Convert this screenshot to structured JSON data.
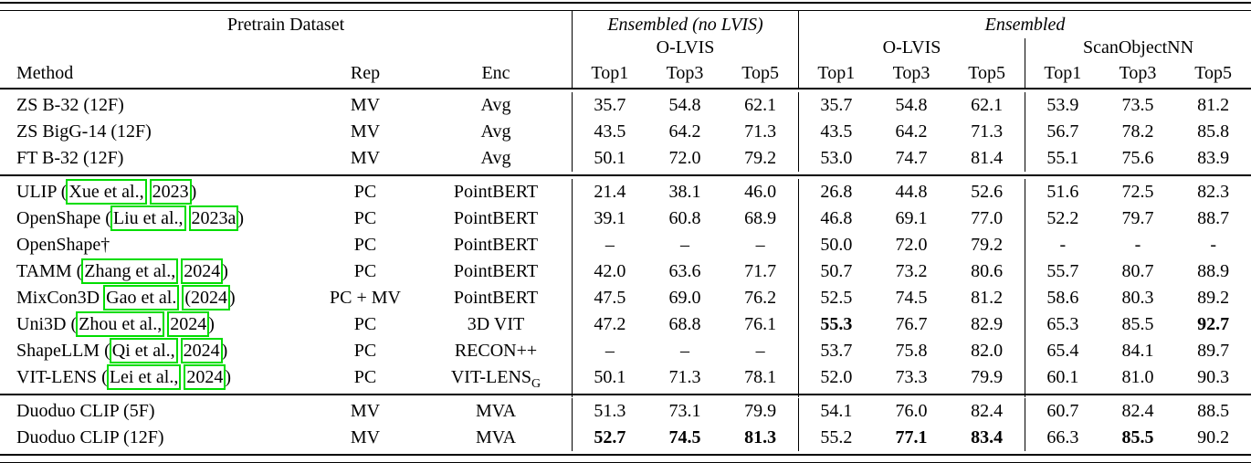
{
  "annotation": {
    "highlight_color": "#00dd00",
    "meaning": "citation-link-bounding-boxes"
  },
  "table": {
    "header": {
      "pretrain_dataset": "Pretrain Dataset",
      "group1": "Ensembled (no LVIS)",
      "group2": "Ensembled",
      "sub1": "O-LVIS",
      "sub2": "O-LVIS",
      "sub3": "ScanObjectNN",
      "method": "Method",
      "rep": "Rep",
      "enc": "Enc",
      "metric_labels": [
        "Top1",
        "Top3",
        "Top5",
        "Top1",
        "Top3",
        "Top5",
        "Top1",
        "Top3",
        "Top5"
      ]
    },
    "groups": [
      {
        "rows": [
          {
            "method": [
              {
                "t": "ZS B-32 (12F)"
              }
            ],
            "rep": "MV",
            "enc": [
              {
                "t": "Avg"
              }
            ],
            "values": [
              "35.7",
              "54.8",
              "62.1",
              "35.7",
              "54.8",
              "62.1",
              "53.9",
              "73.5",
              "81.2"
            ],
            "bold": []
          },
          {
            "method": [
              {
                "t": "ZS BigG-14 (12F)"
              }
            ],
            "rep": "MV",
            "enc": [
              {
                "t": "Avg"
              }
            ],
            "values": [
              "43.5",
              "64.2",
              "71.3",
              "43.5",
              "64.2",
              "71.3",
              "56.7",
              "78.2",
              "85.8"
            ],
            "bold": []
          },
          {
            "method": [
              {
                "t": "FT B-32 (12F)"
              }
            ],
            "rep": "MV",
            "enc": [
              {
                "t": "Avg"
              }
            ],
            "values": [
              "50.1",
              "72.0",
              "79.2",
              "53.0",
              "74.7",
              "81.4",
              "55.1",
              "75.6",
              "83.9"
            ],
            "bold": []
          }
        ]
      },
      {
        "rows": [
          {
            "method": [
              {
                "t": "ULIP ("
              },
              {
                "t": "Xue et al.,",
                "box": true
              },
              {
                "t": " "
              },
              {
                "t": "2023",
                "box": true
              },
              {
                "t": ")"
              }
            ],
            "rep": "PC",
            "enc": [
              {
                "t": "PointBERT"
              }
            ],
            "values": [
              "21.4",
              "38.1",
              "46.0",
              "26.8",
              "44.8",
              "52.6",
              "51.6",
              "72.5",
              "82.3"
            ],
            "bold": []
          },
          {
            "method": [
              {
                "t": "OpenShape ("
              },
              {
                "t": "Liu et al.,",
                "box": true
              },
              {
                "t": " "
              },
              {
                "t": "2023a",
                "box": true
              },
              {
                "t": ")"
              }
            ],
            "rep": "PC",
            "enc": [
              {
                "t": "PointBERT"
              }
            ],
            "values": [
              "39.1",
              "60.8",
              "68.9",
              "46.8",
              "69.1",
              "77.0",
              "52.2",
              "79.7",
              "88.7"
            ],
            "bold": []
          },
          {
            "method": [
              {
                "t": "OpenShape†"
              }
            ],
            "rep": "PC",
            "enc": [
              {
                "t": "PointBERT"
              }
            ],
            "values": [
              "–",
              "–",
              "–",
              "50.0",
              "72.0",
              "79.2",
              "-",
              "-",
              "-"
            ],
            "bold": []
          },
          {
            "method": [
              {
                "t": "TAMM ("
              },
              {
                "t": "Zhang et al.,",
                "box": true
              },
              {
                "t": " "
              },
              {
                "t": "2024",
                "box": true
              },
              {
                "t": ")"
              }
            ],
            "rep": "PC",
            "enc": [
              {
                "t": "PointBERT"
              }
            ],
            "values": [
              "42.0",
              "63.6",
              "71.7",
              "50.7",
              "73.2",
              "80.6",
              "55.7",
              "80.7",
              "88.9"
            ],
            "bold": []
          },
          {
            "method": [
              {
                "t": "MixCon3D "
              },
              {
                "t": "Gao et al.",
                "box": true
              },
              {
                "t": " "
              },
              {
                "t": "(2024",
                "box": true
              },
              {
                "t": ")"
              }
            ],
            "rep": "PC + MV",
            "enc": [
              {
                "t": "PointBERT"
              }
            ],
            "values": [
              "47.5",
              "69.0",
              "76.2",
              "52.5",
              "74.5",
              "81.2",
              "58.6",
              "80.3",
              "89.2"
            ],
            "bold": []
          },
          {
            "method": [
              {
                "t": "Uni3D ("
              },
              {
                "t": "Zhou et al.,",
                "box": true
              },
              {
                "t": " "
              },
              {
                "t": "2024",
                "box": true
              },
              {
                "t": ")"
              }
            ],
            "rep": "PC",
            "enc": [
              {
                "t": "3D VIT"
              }
            ],
            "values": [
              "47.2",
              "68.8",
              "76.1",
              "55.3",
              "76.7",
              "82.9",
              "65.3",
              "85.5",
              "92.7"
            ],
            "bold": [
              3,
              8
            ]
          },
          {
            "method": [
              {
                "t": "ShapeLLM ("
              },
              {
                "t": "Qi et al.,",
                "box": true
              },
              {
                "t": " "
              },
              {
                "t": "2024",
                "box": true
              },
              {
                "t": ")"
              }
            ],
            "rep": "PC",
            "enc": [
              {
                "t": "RECON++"
              }
            ],
            "values": [
              "–",
              "–",
              "–",
              "53.7",
              "75.8",
              "82.0",
              "65.4",
              "84.1",
              "89.7"
            ],
            "bold": []
          },
          {
            "method": [
              {
                "t": "VIT-LENS ("
              },
              {
                "t": "Lei et al.,",
                "box": true
              },
              {
                "t": " "
              },
              {
                "t": "2024",
                "box": true
              },
              {
                "t": ")"
              }
            ],
            "rep": "PC",
            "enc": [
              {
                "t": "VIT-LENS"
              },
              {
                "t": "G",
                "sub": true
              }
            ],
            "values": [
              "50.1",
              "71.3",
              "78.1",
              "52.0",
              "73.3",
              "79.9",
              "60.1",
              "81.0",
              "90.3"
            ],
            "bold": []
          }
        ]
      },
      {
        "rows": [
          {
            "method": [
              {
                "t": "Duoduo CLIP (5F)"
              }
            ],
            "rep": "MV",
            "enc": [
              {
                "t": "MVA"
              }
            ],
            "values": [
              "51.3",
              "73.1",
              "79.9",
              "54.1",
              "76.0",
              "82.4",
              "60.7",
              "82.4",
              "88.5"
            ],
            "bold": []
          },
          {
            "method": [
              {
                "t": "Duoduo CLIP (12F)"
              }
            ],
            "rep": "MV",
            "enc": [
              {
                "t": "MVA"
              }
            ],
            "values": [
              "52.7",
              "74.5",
              "81.3",
              "55.2",
              "77.1",
              "83.4",
              "66.3",
              "85.5",
              "90.2"
            ],
            "bold": [
              0,
              1,
              2,
              4,
              5,
              7
            ]
          }
        ]
      }
    ]
  }
}
